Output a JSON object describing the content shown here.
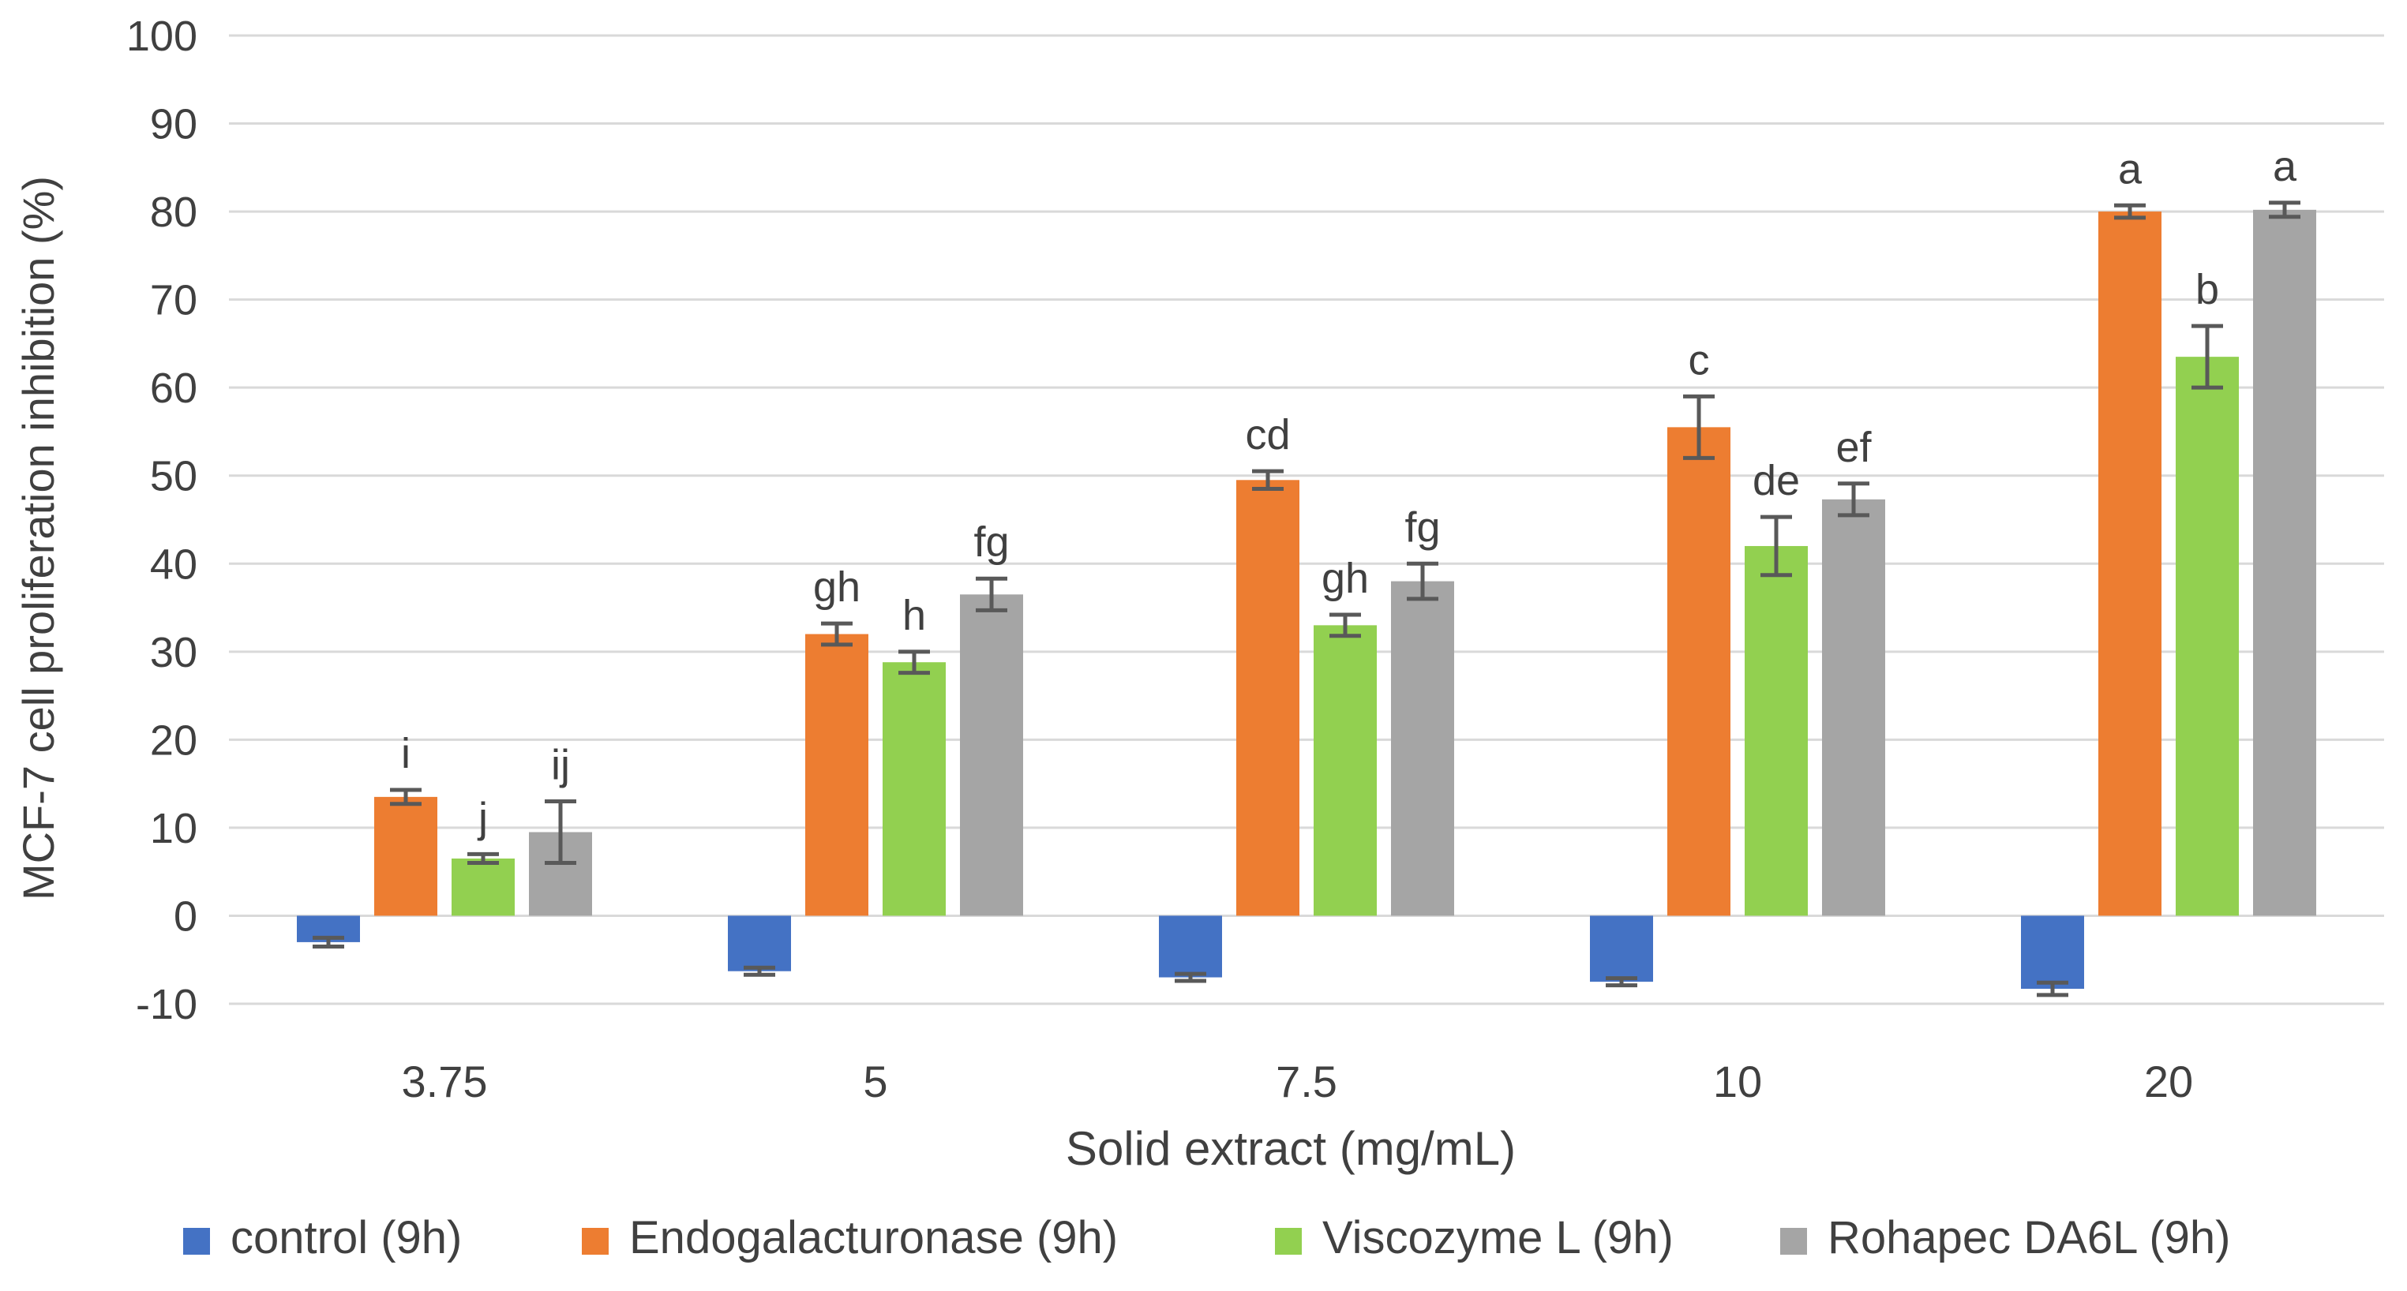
{
  "chart_data": {
    "type": "bar",
    "title": "",
    "xlabel": "Solid extract (mg/mL)",
    "ylabel": "MCF-7 cell proliferation inhibition (%)",
    "ylim": [
      -10,
      100
    ],
    "yticks": [
      -10,
      0,
      10,
      20,
      30,
      40,
      50,
      60,
      70,
      80,
      90,
      100
    ],
    "grid": true,
    "legend_position": "bottom",
    "categories": [
      "3.75",
      "5",
      "7.5",
      "10",
      "20"
    ],
    "series": [
      {
        "name": "control (9h)",
        "color": "#4472c4",
        "values": [
          -3.0,
          -6.3,
          -7.0,
          -7.5,
          -8.3
        ],
        "errors": [
          0.5,
          0.4,
          0.4,
          0.4,
          0.7
        ],
        "labels": [
          "",
          "",
          "",
          "",
          ""
        ]
      },
      {
        "name": "Endogalacturonase (9h)",
        "color": "#ed7d31",
        "values": [
          13.5,
          32.0,
          49.5,
          55.5,
          80.0
        ],
        "errors": [
          0.8,
          1.2,
          1.0,
          3.5,
          0.7
        ],
        "labels": [
          "i",
          "gh",
          "cd",
          "c",
          "a"
        ]
      },
      {
        "name": "Viscozyme L (9h)",
        "color": "#92d050",
        "values": [
          6.5,
          28.8,
          33.0,
          42.0,
          63.5
        ],
        "errors": [
          0.5,
          1.2,
          1.2,
          3.3,
          3.5
        ],
        "labels": [
          "j",
          "h",
          "gh",
          "de",
          "b"
        ]
      },
      {
        "name": "Rohapec DA6L (9h)",
        "color": "#a5a5a5",
        "values": [
          9.5,
          36.5,
          38.0,
          47.3,
          80.2
        ],
        "errors": [
          3.5,
          1.8,
          2.0,
          1.8,
          0.8
        ],
        "labels": [
          "ij",
          "fg",
          "fg",
          "ef",
          "a"
        ]
      }
    ]
  }
}
